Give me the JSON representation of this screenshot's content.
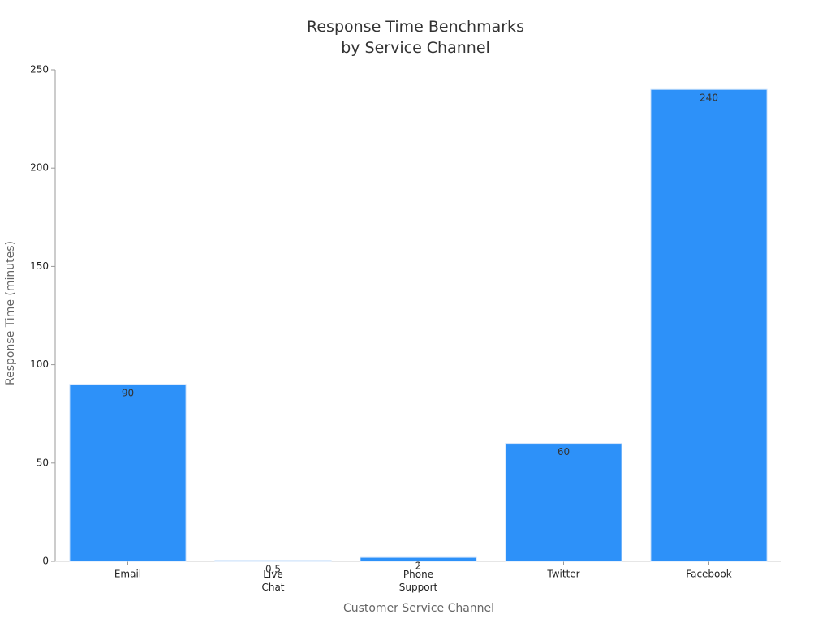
{
  "chart_data": {
    "type": "bar",
    "title": "Response Time Benchmarks\nby Service Channel",
    "x_label": "Customer Service Channel",
    "y_label": "Response Time (minutes)",
    "categories": [
      "Email",
      "Live\nChat",
      "Phone\nSupport",
      "Twitter",
      "Facebook"
    ],
    "values": [
      90,
      0.5,
      2,
      60,
      240
    ],
    "value_labels": [
      "90",
      "0.5",
      "2",
      "60",
      "240"
    ],
    "color": "#2d91f9",
    "ylim": [
      0,
      250
    ],
    "yticks": [
      0,
      50,
      100,
      150,
      200,
      250
    ],
    "grid": false
  }
}
